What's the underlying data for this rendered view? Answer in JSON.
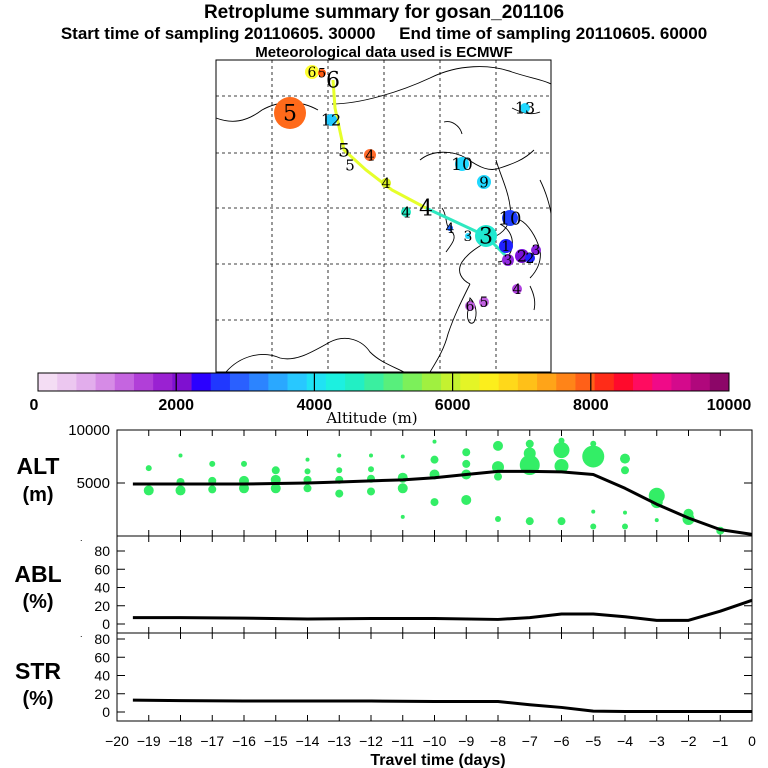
{
  "title": "Retroplume summary for gosan_201106",
  "start_label": "Start time of sampling 20110605. 30000",
  "end_label": "End time of sampling 20110605. 60000",
  "met_label": "Meteorological data used is ECMWF",
  "colors": {
    "trajectory_line": "#e6ff2a",
    "trajectory_line_east": "#2fe8c0",
    "plume_dots": "#33ee66",
    "median_line": "#000000"
  },
  "colorbar": {
    "title": "Altitude (m)",
    "min": 0,
    "max": 10000,
    "tick_labels": [
      "0",
      "2000",
      "4000",
      "6000",
      "8000",
      "10000"
    ],
    "colors": [
      "#f4ddf4",
      "#ecc7f0",
      "#e2adec",
      "#d68be6",
      "#c565e0",
      "#b13fd8",
      "#9a21d2",
      "#7f10d0",
      "#2b00ff",
      "#2038ff",
      "#2a60ff",
      "#2c84ff",
      "#2aa8ff",
      "#28c8ff",
      "#20e2f4",
      "#1cf0e0",
      "#22efc4",
      "#3aefa0",
      "#58ef7c",
      "#7cf05a",
      "#a0f040",
      "#c4f230",
      "#e4f426",
      "#fcee1c",
      "#ffd81a",
      "#ffc018",
      "#ffa418",
      "#ff8418",
      "#ff6018",
      "#ff2c18",
      "#ff0a2c",
      "#ff0c60",
      "#f00a88",
      "#d40a8c",
      "#b0087c",
      "#8c0668"
    ]
  },
  "map_markers": [
    {
      "label": "6",
      "value": 6,
      "color": "#ffff33"
    },
    {
      "label": "5",
      "value": 5,
      "color": "#ff5a10"
    },
    {
      "label": "6",
      "value": 6,
      "color": "#ffff66"
    },
    {
      "label": "5",
      "value": 5,
      "color": "#ff6a1a"
    },
    {
      "label": "12",
      "value": 12,
      "color": "#20c8ff"
    },
    {
      "label": "13",
      "value": 13,
      "color": "#20d8ff"
    },
    {
      "label": "5",
      "value": 5,
      "color": "#ffff66"
    },
    {
      "label": "4",
      "value": 4,
      "color": "#ff6a2a"
    },
    {
      "label": "5",
      "value": 5,
      "color": "#20d8ff"
    },
    {
      "label": "10",
      "value": 10,
      "color": "#20d8ff"
    },
    {
      "label": "9",
      "value": 9,
      "color": "#20d8ff"
    },
    {
      "label": "4",
      "value": 4,
      "color": "#d8f020"
    },
    {
      "label": "4",
      "value": 4,
      "color": "#e6ff2a"
    },
    {
      "label": "4",
      "value": 4,
      "color": "#22e8c0"
    },
    {
      "label": "10",
      "value": 10,
      "color": "#2040ff"
    },
    {
      "label": "4",
      "value": 4,
      "color": "#1860ff"
    },
    {
      "label": "3",
      "value": 3,
      "color": "#20e8d0"
    },
    {
      "label": "3",
      "value": 3,
      "color": "#22d8ff"
    },
    {
      "label": "2",
      "value": 2,
      "color": "#7a10d8"
    },
    {
      "label": "3",
      "value": 3,
      "color": "#8a20e0"
    },
    {
      "label": "1",
      "value": 1,
      "color": "#2020ff"
    },
    {
      "label": "2",
      "value": 2,
      "color": "#2020ff"
    },
    {
      "label": "3",
      "value": 3,
      "color": "#9028e0"
    },
    {
      "label": "6",
      "value": 6,
      "color": "#c060e0"
    },
    {
      "label": "5",
      "value": 5,
      "color": "#c060e0"
    },
    {
      "label": "4",
      "value": 4,
      "color": "#b040e0"
    }
  ],
  "chart_data": [
    {
      "type": "scatter",
      "name": "ALT",
      "ylabel": "ALT\n(m)",
      "ylim": [
        0,
        10000
      ],
      "xlim": [
        -20,
        0
      ],
      "y_ticks": [
        10000,
        5000,
        0
      ],
      "y_tick_labels": [
        "10000",
        "5000",
        ""
      ],
      "median_line": {
        "x": [
          -19.5,
          -18,
          -17,
          -16,
          -15,
          -14,
          -13,
          -12,
          -11,
          -10,
          -9,
          -8,
          -7,
          -6,
          -5,
          -4,
          -3,
          -2,
          -1,
          0
        ],
        "y": [
          4900,
          4900,
          4900,
          4900,
          4950,
          5000,
          5100,
          5200,
          5300,
          5500,
          5800,
          6100,
          6100,
          6050,
          5800,
          4500,
          3000,
          1700,
          600,
          150
        ]
      },
      "points": [
        {
          "x": -19,
          "y": 4300,
          "s": 5
        },
        {
          "x": -19,
          "y": 6400,
          "s": 3
        },
        {
          "x": -18,
          "y": 4300,
          "s": 5
        },
        {
          "x": -18,
          "y": 5100,
          "s": 4
        },
        {
          "x": -18,
          "y": 7600,
          "s": 2
        },
        {
          "x": -17,
          "y": 4400,
          "s": 4
        },
        {
          "x": -17,
          "y": 5200,
          "s": 4
        },
        {
          "x": -17,
          "y": 6800,
          "s": 3
        },
        {
          "x": -16,
          "y": 4500,
          "s": 5
        },
        {
          "x": -16,
          "y": 5200,
          "s": 5
        },
        {
          "x": -16,
          "y": 6800,
          "s": 3
        },
        {
          "x": -15,
          "y": 4500,
          "s": 5
        },
        {
          "x": -15,
          "y": 5300,
          "s": 5
        },
        {
          "x": -15,
          "y": 6200,
          "s": 4
        },
        {
          "x": -14,
          "y": 4500,
          "s": 4
        },
        {
          "x": -14,
          "y": 5300,
          "s": 4
        },
        {
          "x": -14,
          "y": 6100,
          "s": 3
        },
        {
          "x": -14,
          "y": 7200,
          "s": 2
        },
        {
          "x": -13,
          "y": 4000,
          "s": 4
        },
        {
          "x": -13,
          "y": 5300,
          "s": 4
        },
        {
          "x": -13,
          "y": 6200,
          "s": 3
        },
        {
          "x": -13,
          "y": 7600,
          "s": 2
        },
        {
          "x": -12,
          "y": 4200,
          "s": 4
        },
        {
          "x": -12,
          "y": 5400,
          "s": 4
        },
        {
          "x": -12,
          "y": 6300,
          "s": 3
        },
        {
          "x": -12,
          "y": 7600,
          "s": 2
        },
        {
          "x": -11,
          "y": 1800,
          "s": 2
        },
        {
          "x": -11,
          "y": 4500,
          "s": 5
        },
        {
          "x": -11,
          "y": 5500,
          "s": 5
        },
        {
          "x": -11,
          "y": 7500,
          "s": 2
        },
        {
          "x": -10,
          "y": 3200,
          "s": 4
        },
        {
          "x": -10,
          "y": 5800,
          "s": 5
        },
        {
          "x": -10,
          "y": 7200,
          "s": 4
        },
        {
          "x": -10,
          "y": 8900,
          "s": 2
        },
        {
          "x": -9,
          "y": 3400,
          "s": 5
        },
        {
          "x": -9,
          "y": 5800,
          "s": 5
        },
        {
          "x": -9,
          "y": 6800,
          "s": 4
        },
        {
          "x": -9,
          "y": 7900,
          "s": 4
        },
        {
          "x": -8,
          "y": 1600,
          "s": 3
        },
        {
          "x": -8,
          "y": 5600,
          "s": 4
        },
        {
          "x": -8,
          "y": 6500,
          "s": 6
        },
        {
          "x": -8,
          "y": 8500,
          "s": 5
        },
        {
          "x": -7,
          "y": 1400,
          "s": 4
        },
        {
          "x": -7,
          "y": 6700,
          "s": 10
        },
        {
          "x": -7,
          "y": 7800,
          "s": 6
        },
        {
          "x": -7,
          "y": 8700,
          "s": 4
        },
        {
          "x": -6,
          "y": 1400,
          "s": 4
        },
        {
          "x": -6,
          "y": 6600,
          "s": 7
        },
        {
          "x": -6,
          "y": 8100,
          "s": 8
        },
        {
          "x": -6,
          "y": 9000,
          "s": 3
        },
        {
          "x": -5,
          "y": 900,
          "s": 3
        },
        {
          "x": -5,
          "y": 2300,
          "s": 2
        },
        {
          "x": -5,
          "y": 7500,
          "s": 11
        },
        {
          "x": -5,
          "y": 8700,
          "s": 3
        },
        {
          "x": -4,
          "y": 900,
          "s": 3
        },
        {
          "x": -4,
          "y": 2200,
          "s": 2
        },
        {
          "x": -4,
          "y": 6200,
          "s": 4
        },
        {
          "x": -4,
          "y": 7300,
          "s": 5
        },
        {
          "x": -3,
          "y": 1500,
          "s": 2
        },
        {
          "x": -3,
          "y": 3200,
          "s": 6
        },
        {
          "x": -3,
          "y": 3800,
          "s": 8
        },
        {
          "x": -2,
          "y": 1600,
          "s": 6
        },
        {
          "x": -2,
          "y": 2100,
          "s": 5
        },
        {
          "x": -1,
          "y": 500,
          "s": 4
        }
      ]
    },
    {
      "type": "line",
      "name": "ABL",
      "ylabel": "ABL\n(%)",
      "ylim": [
        0,
        90
      ],
      "y_ticks": [
        80,
        60,
        40,
        20,
        0
      ],
      "y_tick_labels": [
        "80",
        "60",
        "40",
        "20",
        "0"
      ],
      "x": [
        -19.5,
        -18,
        -16,
        -14,
        -12,
        -10,
        -8,
        -7,
        -6,
        -5,
        -4,
        -3,
        -2,
        -1,
        0
      ],
      "y": [
        7,
        7,
        6.5,
        5.5,
        6,
        6,
        5,
        7,
        11,
        11,
        8,
        4,
        4,
        14,
        26
      ]
    },
    {
      "type": "line",
      "name": "STR",
      "ylabel": "STR\n(%)",
      "ylim": [
        0,
        90
      ],
      "y_ticks": [
        80,
        60,
        40,
        20,
        0
      ],
      "y_tick_labels": [
        "80",
        "60",
        "40",
        "20",
        "0"
      ],
      "x": [
        -19.5,
        -18,
        -16,
        -14,
        -12,
        -10,
        -8,
        -7,
        -6,
        -5,
        -4,
        -3,
        -2,
        -1,
        0
      ],
      "y": [
        13,
        12.5,
        12,
        12,
        12,
        11.5,
        11.5,
        8,
        5,
        1,
        0.5,
        0.5,
        0.5,
        0.5,
        0.5
      ],
      "xlabel": "Travel time (days)",
      "x_tick_labels": [
        "−20",
        "−19",
        "−18",
        "−17",
        "−16",
        "−15",
        "−14",
        "−13",
        "−12",
        "−11",
        "−10",
        "−9",
        "−8",
        "−7",
        "−6",
        "−5",
        "−4",
        "−3",
        "−2",
        "−1",
        "0"
      ]
    }
  ]
}
